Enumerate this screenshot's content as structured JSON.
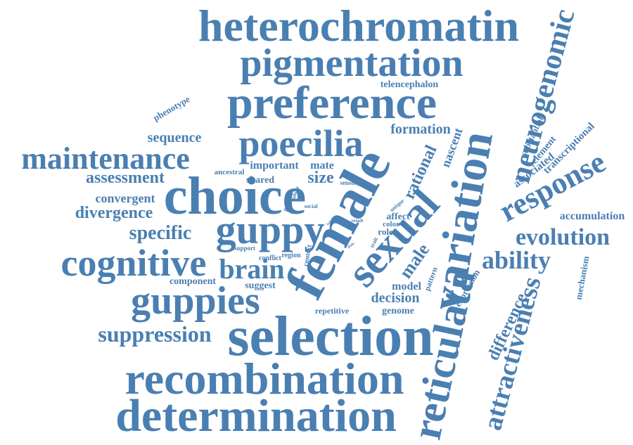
{
  "word_cloud": {
    "color": "#4a7fb2",
    "words": [
      "heterochromatin",
      "pigmentation",
      "preference",
      "neurogenomic",
      "telencephalon",
      "phenotype",
      "formation",
      "sequence",
      "poecilia",
      "maintenance",
      "female",
      "choice",
      "nascent",
      "rational",
      "variation",
      "response",
      "substantial",
      "element",
      "transcriptional",
      "associated",
      "assessment",
      "ancestral",
      "important",
      "mate",
      "size",
      "sensory",
      "convergent",
      "divergence",
      "greater",
      "colour",
      "social",
      "unique",
      "affect",
      "color",
      "sexual",
      "guppy",
      "specific",
      "accumulation",
      "evolution",
      "result",
      "role",
      "wild",
      "test",
      "pair",
      "trait",
      "support",
      "conflict",
      "region",
      "context",
      "cognitive",
      "brain",
      "male",
      "ability",
      "mechanism",
      "component",
      "suggest",
      "shared",
      "model",
      "pattern",
      "expression",
      "attractiveness",
      "difference",
      "guppies",
      "decision",
      "repetitive",
      "genome",
      "reticulata",
      "suppression",
      "selection",
      "recombination",
      "determination"
    ]
  }
}
